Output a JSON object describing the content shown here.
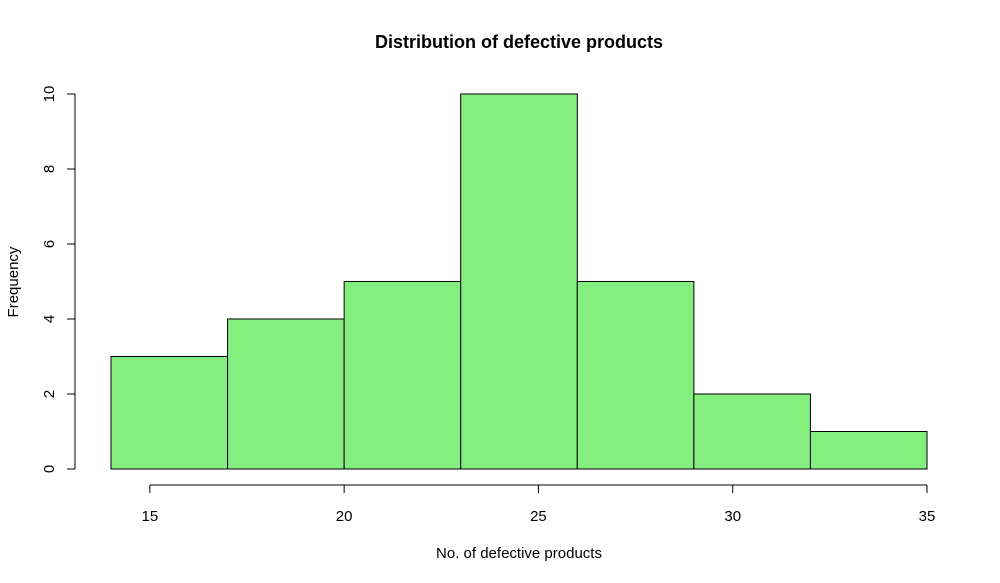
{
  "chart_data": {
    "type": "bar",
    "title": "Distribution of defective products",
    "xlabel": "No. of defective products",
    "ylabel": "Frequency",
    "bins": [
      {
        "start": 14,
        "end": 17,
        "count": 3
      },
      {
        "start": 17,
        "end": 20,
        "count": 4
      },
      {
        "start": 20,
        "end": 23,
        "count": 5
      },
      {
        "start": 23,
        "end": 26,
        "count": 10
      },
      {
        "start": 26,
        "end": 29,
        "count": 5
      },
      {
        "start": 29,
        "end": 32,
        "count": 2
      },
      {
        "start": 32,
        "end": 35,
        "count": 1
      }
    ],
    "xlim": [
      14,
      35
    ],
    "ylim": [
      0,
      10
    ],
    "xticks": [
      15,
      20,
      25,
      30,
      35
    ],
    "yticks": [
      0,
      2,
      4,
      6,
      8,
      10
    ],
    "grid": false,
    "legend": "none",
    "bar_color": "#84ee7f",
    "border_color": "#000000"
  }
}
